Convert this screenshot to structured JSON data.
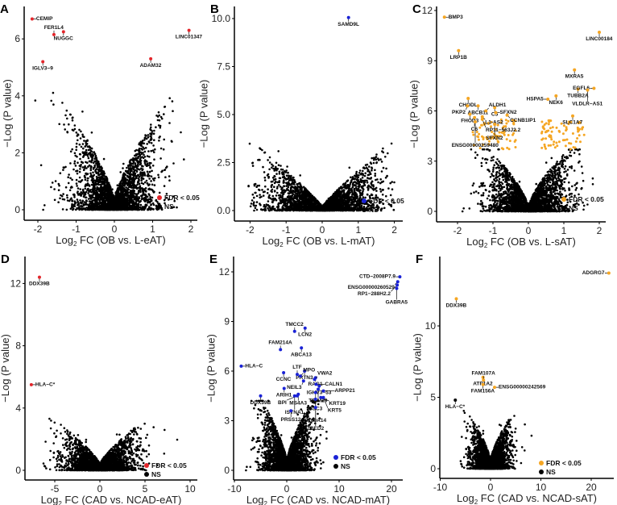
{
  "chart_data": [
    {
      "panel": "A",
      "type": "scatter",
      "xlabel": "Log2 FC (OB vs. L-eAT)",
      "xlabel_main": "Log",
      "xlabel_sub": "2",
      "xlabel_rest": " FC (OB vs. L-eAT)",
      "ylabel": "−Log (P value)",
      "xlim": [
        -2.3,
        2.2
      ],
      "ylim": [
        -0.3,
        7.0
      ],
      "xticks": [
        -2,
        -1,
        0,
        1,
        2
      ],
      "yticks": [
        0,
        2,
        4,
        6
      ],
      "sig_color": "#e3262b",
      "legend": [
        {
          "label": "FDR < 0.05",
          "color": "#e3262b"
        },
        {
          "label": "NS",
          "color": "#000000"
        }
      ],
      "labeled_points": [
        {
          "gene": "CEMIP",
          "x": -2.15,
          "y": 6.7
        },
        {
          "gene": "NUGGC",
          "x": -1.33,
          "y": 6.25
        },
        {
          "gene": "FER1L4",
          "x": -1.58,
          "y": 6.15
        },
        {
          "gene": "IGLV3−9",
          "x": -1.87,
          "y": 5.2
        },
        {
          "gene": "ADAM32",
          "x": 0.95,
          "y": 5.3
        },
        {
          "gene": "LINC01347",
          "x": 1.95,
          "y": 6.3
        }
      ]
    },
    {
      "panel": "B",
      "type": "scatter",
      "xlabel": "Log2 FC (OB vs. L-mAT)",
      "xlabel_main": "Log",
      "xlabel_sub": "2",
      "xlabel_rest": " FC (OB vs. L-mAT)",
      "ylabel": "−Log (P value)",
      "xlim": [
        -2.3,
        2.1
      ],
      "ylim": [
        -0.3,
        10.5
      ],
      "xticks": [
        -2,
        -1,
        0,
        1,
        2
      ],
      "yticks": [
        0,
        2.5,
        5,
        7.5,
        10
      ],
      "ytick_labels": [
        "0.0",
        "2.5",
        "5.0",
        "7.5",
        "10.0"
      ],
      "sig_color": "#1a22d6",
      "legend": [
        {
          "label": "FDR < 0.05",
          "color": "#1a22d6"
        },
        {
          "label": "NS",
          "color": "#000000"
        }
      ],
      "labeled_points": [
        {
          "gene": "SAMD9L",
          "x": 0.73,
          "y": 10.05
        }
      ]
    },
    {
      "panel": "C",
      "type": "scatter",
      "xlabel": "Log2 FC (OB vs. L-sAT)",
      "xlabel_main": "Log",
      "xlabel_sub": "2",
      "xlabel_rest": " FC (OB vs. L-sAT)",
      "ylabel": "−Log (P value)",
      "xlim": [
        -2.6,
        2.2
      ],
      "ylim": [
        -0.5,
        12.2
      ],
      "xticks": [
        -2,
        -1,
        0,
        1,
        2
      ],
      "yticks": [
        0,
        3,
        6,
        9,
        12
      ],
      "sig_color": "#f5a623",
      "legend": [
        {
          "label": "FDR < 0.05",
          "color": "#f5a623"
        },
        {
          "label": "NS",
          "color": "#000000"
        }
      ],
      "labeled_points": [
        {
          "gene": "BMP3",
          "x": -2.37,
          "y": 11.6
        },
        {
          "gene": "LRP1B",
          "x": -1.97,
          "y": 9.6
        },
        {
          "gene": "LINC00184",
          "x": 2.0,
          "y": 10.7
        },
        {
          "gene": "MXRA5",
          "x": 1.3,
          "y": 8.45
        },
        {
          "gene": "TUBB2A",
          "x": 1.4,
          "y": 7.3
        },
        {
          "gene": "EGFL6",
          "x": 1.85,
          "y": 7.35
        },
        {
          "gene": "VLDLR−AS1",
          "x": 1.67,
          "y": 7.25
        },
        {
          "gene": "NEK6",
          "x": 0.78,
          "y": 6.9
        },
        {
          "gene": "HSPA5",
          "x": 0.55,
          "y": 6.7
        },
        {
          "gene": "CHODL",
          "x": -1.7,
          "y": 6.75
        },
        {
          "gene": "ABCB11",
          "x": -1.42,
          "y": 6.3
        },
        {
          "gene": "PKP2",
          "x": -1.72,
          "y": 6.3
        },
        {
          "gene": "C5",
          "x": -0.95,
          "y": 6.2
        },
        {
          "gene": "ALDH1",
          "x": -1.2,
          "y": 6.0
        },
        {
          "gene": "FHOD3",
          "x": -1.65,
          "y": 5.8
        },
        {
          "gene": "SFXN2",
          "x": -0.92,
          "y": 5.9
        },
        {
          "gene": "L1-AS2",
          "x": -1.3,
          "y": 5.65
        },
        {
          "gene": "CCNB1IP1",
          "x": -0.6,
          "y": 5.75
        },
        {
          "gene": "C6",
          "x": -1.52,
          "y": 5.6
        },
        {
          "gene": "RP11−563J2.2",
          "x": -1.3,
          "y": 5.5
        },
        {
          "gene": "SFXN2",
          "x": -0.95,
          "y": 5.2
        },
        {
          "gene": "ENSG00000259480",
          "x": -1.5,
          "y": 5.35
        },
        {
          "gene": "SLC1A7",
          "x": 1.25,
          "y": 5.7
        }
      ]
    },
    {
      "panel": "D",
      "type": "scatter",
      "xlabel": "Log2 FC (CAD vs. NCAD-eAT)",
      "xlabel_main": "Log",
      "xlabel_sub": "2",
      "xlabel_rest": " FC (CAD vs. NCAD-eAT)",
      "ylabel": "−Log (P value)",
      "xlim": [
        -8.5,
        10.6
      ],
      "ylim": [
        -0.6,
        13
      ],
      "xticks": [
        -5,
        0,
        5,
        10
      ],
      "yticks": [
        0,
        4,
        8,
        12
      ],
      "sig_color": "#e3262b",
      "legend": [
        {
          "label": "FDR < 0.05",
          "color": "#e3262b"
        },
        {
          "label": "NS",
          "color": "#000000"
        }
      ],
      "labeled_points": [
        {
          "gene": "DDX39B",
          "x": -6.7,
          "y": 12.4
        },
        {
          "gene": "HLA−C*",
          "x": -7.6,
          "y": 5.5
        }
      ]
    },
    {
      "panel": "E",
      "type": "scatter",
      "xlabel": "Log2 FC (CAD vs. NCAD-mAT)",
      "xlabel_main": "Log",
      "xlabel_sub": "2",
      "xlabel_rest": " FC (CAD vs. NCAD-mAT)",
      "ylabel": "−Log (P value)",
      "xlim": [
        -10,
        23
      ],
      "ylim": [
        -0.5,
        12.5
      ],
      "xticks": [
        -10,
        0,
        10,
        20
      ],
      "yticks": [
        0,
        3,
        6,
        9,
        12
      ],
      "sig_color": "#1a22d6",
      "legend": [
        {
          "label": "FDR < 0.05",
          "color": "#1a22d6"
        },
        {
          "label": "NS",
          "color": "#000000"
        }
      ],
      "labeled_points": [
        {
          "gene": "CTD−2008P7.9",
          "x": 21.6,
          "y": 11.7
        },
        {
          "gene": "ENSG00000260529",
          "x": 21.2,
          "y": 11.4
        },
        {
          "gene": "RP1−288H2.2",
          "x": 21.1,
          "y": 11.2
        },
        {
          "gene": "GABRA5",
          "x": 21.0,
          "y": 11.0
        },
        {
          "gene": "LCN2",
          "x": 3.5,
          "y": 8.6
        },
        {
          "gene": "TMCC2",
          "x": 1.5,
          "y": 8.4
        },
        {
          "gene": "ABCA13",
          "x": 2.8,
          "y": 7.4
        },
        {
          "gene": "FAM214A",
          "x": -1.2,
          "y": 7.3
        },
        {
          "gene": "PRTN3",
          "x": 3.4,
          "y": 6.0
        },
        {
          "gene": "RAG1",
          "x": 5.5,
          "y": 5.6
        },
        {
          "gene": "IGHV3−53",
          "x": 6.2,
          "y": 5.1
        },
        {
          "gene": "CCNC",
          "x": -0.6,
          "y": 5.9
        },
        {
          "gene": "LTF",
          "x": 2.0,
          "y": 5.8
        },
        {
          "gene": "VWA2",
          "x": 5.3,
          "y": 5.5
        },
        {
          "gene": "HLA−C",
          "x": -8.7,
          "y": 6.3
        },
        {
          "gene": "MPO",
          "x": 2.6,
          "y": 5.7
        },
        {
          "gene": "NEIL3",
          "x": 3.2,
          "y": 5.4
        },
        {
          "gene": "CALN1",
          "x": 5.6,
          "y": 5.2
        },
        {
          "gene": "TRIM29",
          "x": 6.0,
          "y": 4.9
        },
        {
          "gene": "ARPP21",
          "x": 7.0,
          "y": 4.8
        },
        {
          "gene": "ARIH1",
          "x": -0.5,
          "y": 4.95
        },
        {
          "gene": "MS4A3",
          "x": 2.2,
          "y": 4.6
        },
        {
          "gene": "BPI",
          "x": 2.0,
          "y": 4.5
        },
        {
          "gene": "DSC3",
          "x": 5.5,
          "y": 4.7
        },
        {
          "gene": "ISYNA1",
          "x": 1.5,
          "y": 4.5
        },
        {
          "gene": "KRT19",
          "x": 6.5,
          "y": 4.4
        },
        {
          "gene": "KRT5",
          "x": 7.0,
          "y": 4.4
        },
        {
          "gene": "DDX39B",
          "x": -5.0,
          "y": 4.5
        },
        {
          "gene": "PRSS12",
          "x": 0.8,
          "y": 3.6
        },
        {
          "gene": "S100A14",
          "x": 5.5,
          "y": 4.3
        },
        {
          "gene": "ZBED2",
          "x": 5.5,
          "y": 3.8
        }
      ]
    },
    {
      "panel": "F",
      "type": "scatter",
      "xlabel": "Log2 FC (CAD vs. NCAD-sAT)",
      "xlabel_main": "Log",
      "xlabel_sub": "2",
      "xlabel_rest": " FC (CAD vs. NCAD-sAT)",
      "ylabel": "−Log (P value)",
      "xlim": [
        -10,
        25
      ],
      "ylim": [
        -0.6,
        14.5
      ],
      "xticks": [
        -10,
        0,
        10,
        20
      ],
      "yticks": [
        0,
        5,
        10
      ],
      "sig_color": "#f5a623",
      "legend": [
        {
          "label": "FDR < 0.05",
          "color": "#f5a623"
        },
        {
          "label": "NS",
          "color": "#000000"
        }
      ],
      "labeled_points": [
        {
          "gene": "ADGRG7",
          "x": 23.5,
          "y": 13.7
        },
        {
          "gene": "DDX39B",
          "x": -6.8,
          "y": 11.9
        },
        {
          "gene": "ATP1A2",
          "x": -1.5,
          "y": 6.4
        },
        {
          "gene": "FAM107A",
          "x": -1.4,
          "y": 6.2
        },
        {
          "gene": "FAM156A",
          "x": -1.5,
          "y": 5.9
        },
        {
          "gene": "ENSG00000242569",
          "x": 0.8,
          "y": 5.7
        },
        {
          "gene": "HLA−C*",
          "x": -7.0,
          "y": 4.8,
          "ns": true
        }
      ]
    }
  ]
}
